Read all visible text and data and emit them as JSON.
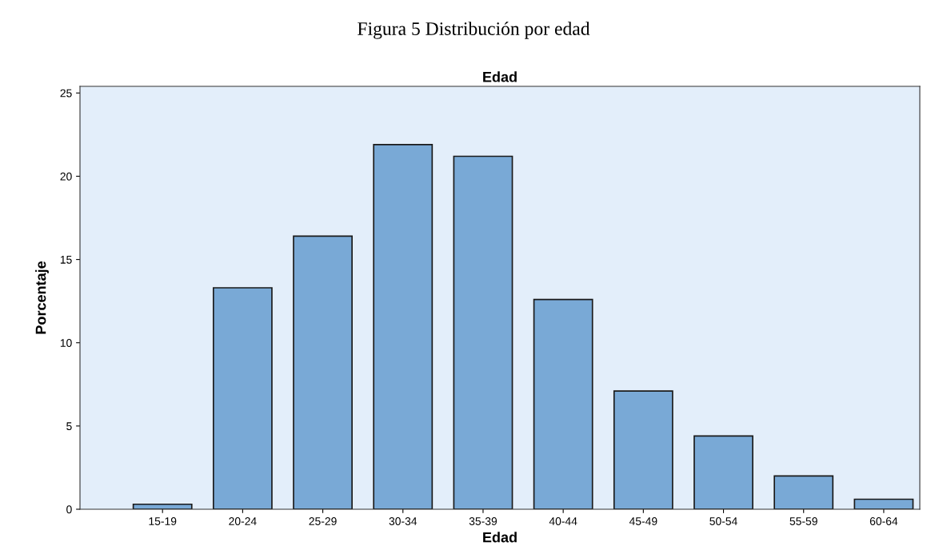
{
  "chart_data": {
    "type": "bar",
    "title": "Edad",
    "subtitle": "Figura 5 Distribución por edad",
    "xlabel": "Edad",
    "ylabel": "Porcentaje",
    "categories": [
      "15-19",
      "20-24",
      "25-29",
      "30-34",
      "35-39",
      "40-44",
      "45-49",
      "50-54",
      "55-59",
      "60-64"
    ],
    "values": [
      0.3,
      13.3,
      16.4,
      21.9,
      21.2,
      12.6,
      7.1,
      4.4,
      2.0,
      0.6
    ],
    "color": "#79a9d6",
    "ylim": [
      0,
      25.4
    ],
    "yticks": [
      0,
      5,
      10,
      15,
      20,
      25
    ],
    "grid": false,
    "legend": false
  }
}
